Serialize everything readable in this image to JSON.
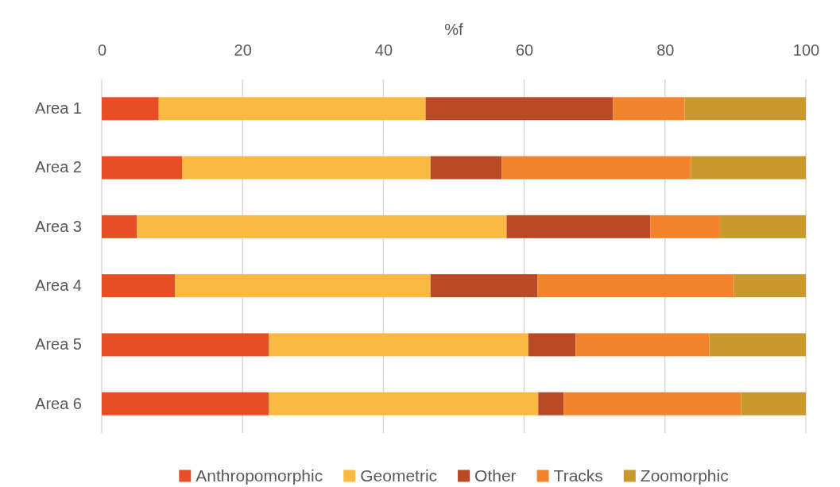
{
  "chart_data": {
    "type": "bar",
    "orientation": "horizontal",
    "stacked": true,
    "xlabel": "%f",
    "categories": [
      "Area 1",
      "Area 2",
      "Area 3",
      "Area 4",
      "Area 5",
      "Area 6"
    ],
    "series": [
      {
        "name": "Anthropomorphic",
        "color": "#e64f25",
        "values": [
          8.1,
          11.4,
          5.0,
          10.4,
          23.7,
          23.7
        ]
      },
      {
        "name": "Geometric",
        "color": "#fbb944",
        "values": [
          37.9,
          35.3,
          52.5,
          36.3,
          36.9,
          38.3
        ]
      },
      {
        "name": "Other",
        "color": "#b84a26",
        "values": [
          26.6,
          10.1,
          20.4,
          15.2,
          6.7,
          3.6
        ]
      },
      {
        "name": "Tracks",
        "color": "#f2842e",
        "values": [
          10.2,
          26.9,
          9.9,
          27.9,
          19.0,
          25.2
        ]
      },
      {
        "name": "Zoomorphic",
        "color": "#c8992e",
        "values": [
          17.2,
          16.3,
          12.2,
          10.2,
          13.7,
          9.2
        ]
      }
    ],
    "xlim": [
      0,
      100
    ],
    "xticks": [
      0,
      20,
      40,
      60,
      80,
      100
    ],
    "grid": "x",
    "legend": "bottom"
  }
}
